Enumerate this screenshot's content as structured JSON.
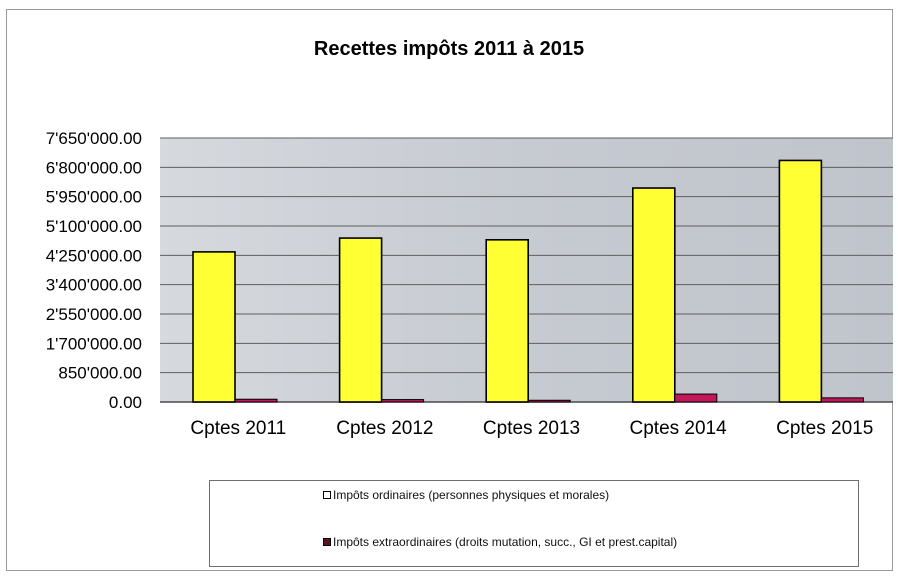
{
  "chart_data": {
    "type": "bar",
    "title": "Recettes impôts 2011 à 2015",
    "categories": [
      "Cptes 2011",
      "Cptes 2012",
      "Cptes 2013",
      "Cptes 2014",
      "Cptes 2015"
    ],
    "series": [
      {
        "name": "Impôts ordinaires (personnes physiques et morales)",
        "color": "#ffff33",
        "values": [
          4350000,
          4750000,
          4700000,
          6200000,
          7000000
        ]
      },
      {
        "name": "Impôts extraordinaires (droits mutation, succ., GI et prest.capital)",
        "color": "#c2185b",
        "values": [
          80000,
          70000,
          50000,
          230000,
          120000
        ]
      }
    ],
    "yticks": [
      "0.00",
      "850'000.00",
      "1'700'000.00",
      "2'550'000.00",
      "3'400'000.00",
      "4'250'000.00",
      "5'100'000.00",
      "5'950'000.00",
      "6'800'000.00",
      "7'650'000.00"
    ],
    "ylim": [
      0,
      7650000
    ],
    "grid": true,
    "legend_position": "bottom",
    "plot_background": "#c8ccd3"
  },
  "legend": {
    "item1": "Impôts ordinaires (personnes physiques et morales)",
    "item2": "Impôts extraordinaires (droits mutation, succ., GI et prest.capital)",
    "color1": "#ffffff",
    "color2": "#5a1426"
  }
}
